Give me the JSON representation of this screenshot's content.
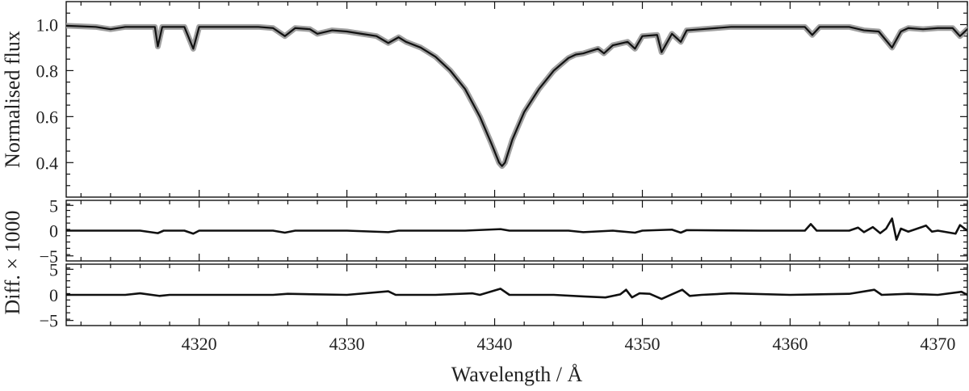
{
  "chart_data": [
    {
      "type": "line",
      "panel": "top",
      "ylabel": "Normalised flux",
      "xlim": [
        4311,
        4372
      ],
      "ylim": [
        0.25,
        1.1
      ],
      "yticks": [
        0.4,
        0.6,
        0.8,
        1.0
      ],
      "ytick_labels": [
        "0.4",
        "0.6",
        "0.8",
        "1.0"
      ],
      "series": [
        {
          "color": "#a0a0a0",
          "style": "thick",
          "x": [
            4311,
            4313,
            4314,
            4315,
            4316,
            4317,
            4317.2,
            4317.5,
            4318,
            4319,
            4319.6,
            4320,
            4322,
            4324,
            4325,
            4325.8,
            4326.5,
            4327.5,
            4328,
            4329,
            4330,
            4331,
            4332,
            4332.8,
            4333.5,
            4334,
            4335,
            4336,
            4337,
            4338,
            4339,
            4339.8,
            4340.3,
            4340.5,
            4340.7,
            4341.2,
            4342,
            4343,
            4344,
            4345,
            4345.5,
            4346,
            4347,
            4347.4,
            4348,
            4349,
            4349.5,
            4350,
            4351,
            4351.3,
            4352,
            4352.6,
            4353,
            4354,
            4355,
            4356,
            4358,
            4360,
            4361,
            4361.5,
            4362,
            4364,
            4365,
            4366,
            4366.9,
            4367.5,
            4368,
            4369,
            4370,
            4371,
            4371.5,
            4372
          ],
          "y": [
            0.995,
            0.99,
            0.98,
            0.99,
            0.99,
            0.99,
            0.905,
            0.99,
            0.99,
            0.99,
            0.895,
            0.99,
            0.99,
            0.99,
            0.985,
            0.95,
            0.985,
            0.98,
            0.96,
            0.975,
            0.97,
            0.96,
            0.95,
            0.92,
            0.945,
            0.925,
            0.9,
            0.86,
            0.8,
            0.72,
            0.6,
            0.48,
            0.4,
            0.385,
            0.4,
            0.5,
            0.62,
            0.72,
            0.8,
            0.855,
            0.87,
            0.875,
            0.895,
            0.875,
            0.91,
            0.925,
            0.895,
            0.95,
            0.955,
            0.88,
            0.96,
            0.925,
            0.975,
            0.98,
            0.985,
            0.99,
            0.99,
            0.99,
            0.99,
            0.955,
            0.99,
            0.99,
            0.975,
            0.97,
            0.9,
            0.97,
            0.985,
            0.98,
            0.985,
            0.985,
            0.95,
            0.98
          ]
        },
        {
          "color": "#111111",
          "style": "thin",
          "x": [
            4311,
            4313,
            4314,
            4315,
            4316,
            4317,
            4317.2,
            4317.5,
            4318,
            4319,
            4319.6,
            4320,
            4322,
            4324,
            4325,
            4325.8,
            4326.5,
            4327.5,
            4328,
            4329,
            4330,
            4331,
            4332,
            4332.8,
            4333.5,
            4334,
            4335,
            4336,
            4337,
            4338,
            4339,
            4339.8,
            4340.3,
            4340.5,
            4340.7,
            4341.2,
            4342,
            4343,
            4344,
            4345,
            4345.5,
            4346,
            4347,
            4347.4,
            4348,
            4349,
            4349.5,
            4350,
            4351,
            4351.3,
            4352,
            4352.6,
            4353,
            4354,
            4355,
            4356,
            4358,
            4360,
            4361,
            4361.5,
            4362,
            4364,
            4365,
            4366,
            4366.9,
            4367.5,
            4368,
            4369,
            4370,
            4371,
            4371.5,
            4372
          ],
          "y": [
            0.995,
            0.99,
            0.98,
            0.99,
            0.99,
            0.99,
            0.905,
            0.99,
            0.99,
            0.99,
            0.895,
            0.99,
            0.99,
            0.99,
            0.985,
            0.95,
            0.985,
            0.98,
            0.96,
            0.975,
            0.97,
            0.96,
            0.95,
            0.92,
            0.945,
            0.925,
            0.9,
            0.86,
            0.8,
            0.72,
            0.6,
            0.48,
            0.4,
            0.385,
            0.4,
            0.5,
            0.62,
            0.72,
            0.8,
            0.855,
            0.87,
            0.875,
            0.895,
            0.875,
            0.91,
            0.925,
            0.895,
            0.95,
            0.955,
            0.88,
            0.96,
            0.925,
            0.975,
            0.98,
            0.985,
            0.99,
            0.99,
            0.99,
            0.99,
            0.955,
            0.99,
            0.99,
            0.975,
            0.97,
            0.9,
            0.97,
            0.985,
            0.98,
            0.985,
            0.985,
            0.95,
            0.98
          ]
        }
      ]
    },
    {
      "type": "line",
      "panel": "middle",
      "xlim": [
        4311,
        4372
      ],
      "ylim": [
        -6,
        6
      ],
      "yticks": [
        -5,
        0,
        5
      ],
      "ytick_labels": [
        "−5",
        "0",
        "5"
      ],
      "series": [
        {
          "color": "#111111",
          "x": [
            4311,
            4314,
            4316,
            4317.2,
            4317.6,
            4319,
            4319.6,
            4320,
            4325,
            4325.8,
            4326.5,
            4330,
            4332.8,
            4333.5,
            4338,
            4340.4,
            4341,
            4345,
            4346,
            4348,
            4349.5,
            4350,
            4352,
            4352.6,
            4353,
            4358,
            4361,
            4361.4,
            4361.8,
            4364,
            4364.6,
            4365,
            4365.6,
            4366.1,
            4366.5,
            4366.9,
            4367.2,
            4367.5,
            4368,
            4369.2,
            4369.6,
            4370,
            4371.2,
            4371.5,
            4372
          ],
          "y": [
            0,
            0,
            0,
            -0.5,
            0,
            0,
            -0.6,
            0,
            0,
            -0.4,
            0,
            0,
            -0.3,
            0,
            0,
            0.3,
            0,
            0,
            -0.3,
            0,
            -0.4,
            0,
            0.2,
            -0.4,
            0.1,
            0,
            0,
            1.3,
            0,
            0,
            0.6,
            -0.3,
            0.7,
            -0.5,
            0.4,
            2.4,
            -1.8,
            0.4,
            -0.2,
            1.0,
            -0.2,
            0,
            -0.6,
            1.1,
            0
          ]
        }
      ]
    },
    {
      "type": "line",
      "panel": "bottom",
      "xlabel": "Wavelength / Å",
      "ylabel": "Diff. × 1000",
      "xlim": [
        4311,
        4372
      ],
      "ylim": [
        -6,
        6
      ],
      "xticks": [
        4320,
        4330,
        4340,
        4350,
        4360,
        4370
      ],
      "xtick_labels": [
        "4320",
        "4330",
        "4340",
        "4350",
        "4360",
        "4370"
      ],
      "yticks": [
        -5,
        0,
        5
      ],
      "ytick_labels": [
        "−5",
        "0",
        "5"
      ],
      "series": [
        {
          "color": "#111111",
          "x": [
            4311,
            4315,
            4316,
            4317.3,
            4318,
            4325,
            4326,
            4330,
            4332.8,
            4333.3,
            4336,
            4338.5,
            4339,
            4340.4,
            4341,
            4344,
            4346,
            4347.5,
            4348.5,
            4348.9,
            4349.3,
            4349.8,
            4350.5,
            4351.3,
            4352,
            4352.7,
            4353.2,
            4354,
            4356,
            4360,
            4364,
            4365.7,
            4366.2,
            4368,
            4370,
            4371.6,
            4372
          ],
          "y": [
            0,
            0,
            0.3,
            -0.2,
            0,
            0,
            0.2,
            0,
            0.7,
            0,
            0,
            0.3,
            0,
            1.2,
            0,
            0,
            -0.3,
            -0.5,
            0.1,
            1.0,
            -0.5,
            0.3,
            0.2,
            -0.8,
            0.1,
            1.0,
            -0.2,
            0,
            0.3,
            0,
            0.2,
            1.0,
            0,
            0.2,
            0,
            0.6,
            0
          ]
        }
      ]
    }
  ]
}
